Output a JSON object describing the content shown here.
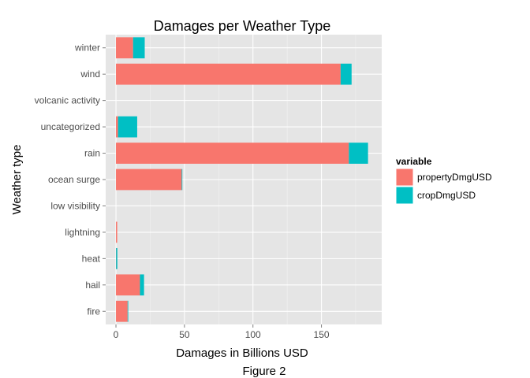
{
  "chart_data": {
    "type": "bar",
    "orientation": "horizontal",
    "stacked": true,
    "title": "Damages per Weather Type",
    "xlabel": "Damages in Billions USD",
    "ylabel": "Weather type",
    "xlim": [
      -7.5,
      194
    ],
    "xticks": [
      0,
      50,
      100,
      150
    ],
    "grid": true,
    "legend_position": "right",
    "legend_title": "variable",
    "categories": [
      "fire",
      "hail",
      "heat",
      "lightning",
      "low visibility",
      "ocean surge",
      "rain",
      "uncategorized",
      "volcanic activity",
      "wind",
      "winter"
    ],
    "series": [
      {
        "name": "propertyDmgUSD",
        "color": "#F8766D",
        "values": [
          8.5,
          17.5,
          0.1,
          0.9,
          0.0,
          48.0,
          170.0,
          1.5,
          0.0,
          164.0,
          12.5
        ]
      },
      {
        "name": "cropDmgUSD",
        "color": "#00BFC4",
        "values": [
          0.4,
          3.0,
          0.9,
          0.0,
          0.0,
          0.1,
          14.0,
          14.0,
          0.0,
          8.0,
          8.5
        ]
      }
    ]
  },
  "caption": "Figure 2"
}
